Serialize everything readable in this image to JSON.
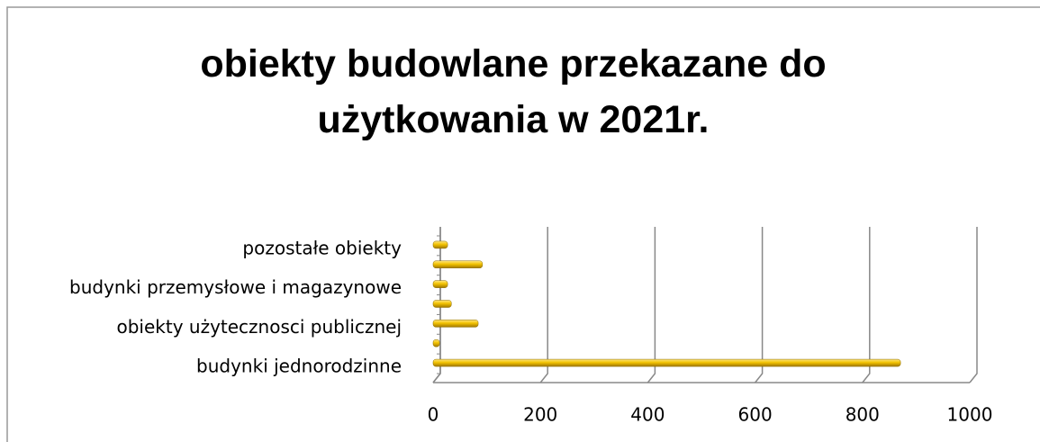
{
  "chart_data": {
    "type": "bar",
    "orientation": "horizontal",
    "title": "obiekty budowlane przekazane do użytkowania w 2021r.",
    "categories": [
      "budynki jednorodzinne",
      null,
      "obiekty użytecznosci publicznej",
      null,
      "budynki przemysłowe i magazynowe",
      null,
      "pozostałe obiekty"
    ],
    "values": [
      871,
      12,
      84,
      34,
      27,
      92,
      27
    ],
    "color": "#f2c200",
    "xlim": [
      0,
      1000
    ],
    "xticks": [
      0,
      200,
      400,
      600,
      800,
      1000
    ],
    "grid": true
  }
}
